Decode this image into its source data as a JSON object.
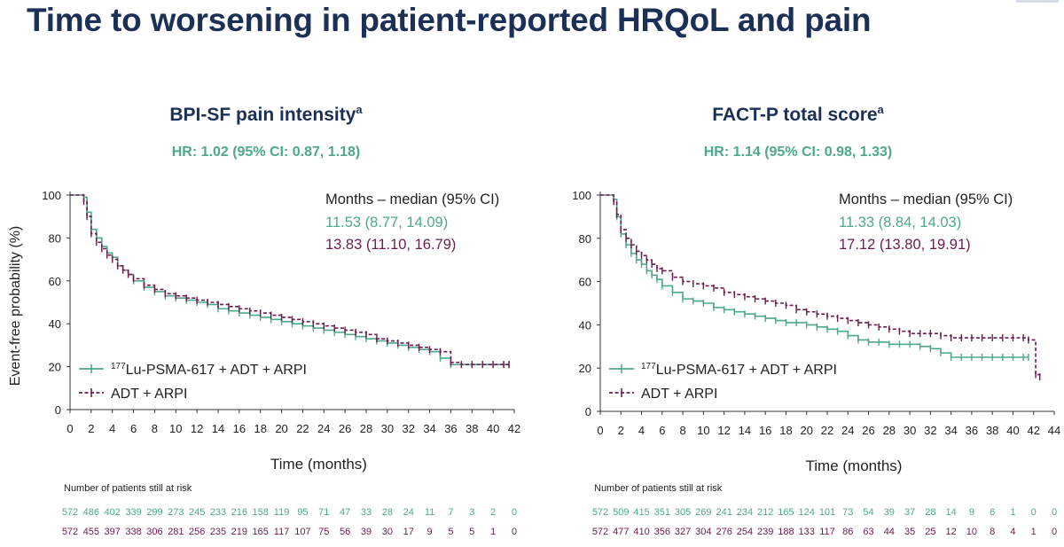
{
  "page": {
    "title": "Time to worsening in patient-reported HRQoL and pain"
  },
  "colors": {
    "title": "#1b2f57",
    "treatment": "#4ea88c",
    "control": "#6b1e4e",
    "axis": "#333333"
  },
  "chart_data": [
    {
      "type": "line",
      "subtype": "kaplan-meier",
      "title": "BPI-SF pain intensity",
      "title_superscript": "a",
      "subtitle": "HR: 1.02 (95% CI: 0.87, 1.18)",
      "xlabel": "Time (months)",
      "ylabel": "Event-free probability (%)",
      "xlim": [
        0,
        42
      ],
      "ylim": [
        0,
        100
      ],
      "x_ticks": [
        0,
        2,
        4,
        6,
        8,
        10,
        12,
        14,
        16,
        18,
        20,
        22,
        24,
        26,
        28,
        30,
        32,
        34,
        36,
        38,
        40,
        42
      ],
      "y_ticks": [
        0,
        20,
        40,
        60,
        80,
        100
      ],
      "legend_position": "bottom-left",
      "median_header": "Months – median (95% CI)",
      "series": [
        {
          "name": "177Lu-PSMA-617 + ADT + ARPI",
          "name_sup": "177",
          "name_rest": "Lu-PSMA-617 + ADT + ARPI",
          "median_text": "11.53 (8.77, 14.09)",
          "x": [
            0,
            1,
            1.3,
            1.6,
            2,
            2.5,
            3,
            3.5,
            4,
            4.5,
            5,
            5.5,
            6,
            7,
            8,
            9,
            10,
            11,
            12,
            13,
            14,
            15,
            16,
            17,
            18,
            19,
            20,
            21,
            22,
            23,
            24,
            25,
            26,
            27,
            28,
            29,
            30,
            31,
            32,
            33,
            34,
            35,
            36,
            37,
            38,
            39,
            40,
            41,
            41.5
          ],
          "y": [
            100,
            100,
            99,
            92,
            84,
            80,
            76,
            73,
            71,
            67,
            65,
            63,
            60,
            57,
            55,
            53,
            52,
            51,
            50,
            49,
            47,
            46,
            45,
            44,
            43,
            42,
            41,
            40,
            39,
            38,
            37,
            36,
            35,
            34,
            33,
            32,
            31,
            30,
            29,
            28,
            27,
            24,
            21,
            21,
            21,
            21,
            21,
            21,
            21
          ],
          "at_risk": [
            572,
            486,
            402,
            339,
            299,
            273,
            245,
            233,
            216,
            158,
            119,
            95,
            71,
            47,
            33,
            28,
            24,
            11,
            7,
            3,
            2,
            0
          ]
        },
        {
          "name": "ADT + ARPI",
          "median_text": "13.83 (11.10, 16.79)",
          "x": [
            0,
            1,
            1.3,
            1.6,
            2,
            2.5,
            3,
            3.5,
            4,
            4.5,
            5,
            5.5,
            6,
            7,
            8,
            9,
            10,
            11,
            12,
            13,
            14,
            15,
            16,
            17,
            18,
            19,
            20,
            21,
            22,
            23,
            24,
            25,
            26,
            27,
            28,
            29,
            30,
            31,
            32,
            33,
            34,
            35,
            36,
            37,
            38,
            39,
            40,
            41,
            41.5
          ],
          "y": [
            100,
            100,
            97,
            90,
            82,
            78,
            75,
            72,
            70,
            67,
            65,
            63,
            61,
            58,
            56,
            54,
            53,
            52,
            51,
            50,
            49,
            48,
            47,
            46,
            45,
            44,
            43,
            42,
            41,
            40,
            39,
            38,
            37,
            36,
            35,
            33,
            32,
            31,
            30,
            29,
            28,
            27,
            22,
            21,
            21,
            21,
            21,
            21,
            21
          ],
          "at_risk": [
            572,
            455,
            397,
            338,
            306,
            281,
            256,
            235,
            219,
            165,
            117,
            107,
            75,
            56,
            39,
            30,
            17,
            9,
            5,
            5,
            1,
            0
          ]
        }
      ],
      "at_risk_title": "Number of patients still at risk"
    },
    {
      "type": "line",
      "subtype": "kaplan-meier",
      "title": "FACT-P total score",
      "title_superscript": "a",
      "subtitle": "HR: 1.14 (95% CI: 0.98, 1.33)",
      "xlabel": "Time (months)",
      "ylabel": "",
      "xlim": [
        0,
        44
      ],
      "ylim": [
        0,
        100
      ],
      "x_ticks": [
        0,
        2,
        4,
        6,
        8,
        10,
        12,
        14,
        16,
        18,
        20,
        22,
        24,
        26,
        28,
        30,
        32,
        34,
        36,
        38,
        40,
        42,
        44
      ],
      "y_ticks": [
        0,
        20,
        40,
        60,
        80,
        100
      ],
      "legend_position": "bottom-left",
      "median_header": "Months – median (95% CI)",
      "series": [
        {
          "name": "177Lu-PSMA-617 + ADT + ARPI",
          "name_sup": "177",
          "name_rest": "Lu-PSMA-617 + ADT + ARPI",
          "median_text": "11.33 (8.84, 14.03)",
          "x": [
            0,
            1,
            1.3,
            1.6,
            2,
            2.5,
            3,
            3.5,
            4,
            4.5,
            5,
            5.5,
            6,
            7,
            8,
            9,
            10,
            11,
            12,
            13,
            14,
            15,
            16,
            17,
            18,
            19,
            20,
            21,
            22,
            23,
            24,
            25,
            26,
            27,
            28,
            29,
            30,
            31,
            32,
            33,
            34,
            35,
            36,
            37,
            38,
            39,
            40,
            41,
            41.5
          ],
          "y": [
            100,
            100,
            98,
            90,
            82,
            77,
            73,
            70,
            68,
            65,
            63,
            61,
            58,
            55,
            52,
            51,
            50,
            48,
            47,
            46,
            45,
            44,
            43,
            42,
            41,
            41,
            40,
            39,
            38,
            37,
            35,
            33,
            32,
            32,
            31,
            31,
            31,
            30,
            29,
            27,
            25,
            25,
            25,
            25,
            25,
            25,
            25,
            25,
            25
          ],
          "at_risk": [
            572,
            509,
            415,
            351,
            305,
            269,
            241,
            234,
            212,
            165,
            124,
            101,
            73,
            54,
            39,
            37,
            28,
            14,
            9,
            6,
            1,
            0,
            0
          ]
        },
        {
          "name": "ADT + ARPI",
          "median_text": "17.12 (13.80, 19.91)",
          "x": [
            0,
            1,
            1.3,
            1.6,
            2,
            2.5,
            3,
            3.5,
            4,
            4.5,
            5,
            5.5,
            6,
            7,
            8,
            9,
            10,
            11,
            12,
            13,
            14,
            15,
            16,
            17,
            18,
            19,
            20,
            21,
            22,
            23,
            24,
            25,
            26,
            27,
            28,
            29,
            30,
            31,
            32,
            33,
            34,
            35,
            36,
            37,
            38,
            39,
            40,
            41,
            41.5,
            42.2,
            42.6
          ],
          "y": [
            100,
            100,
            97,
            91,
            84,
            80,
            77,
            74,
            72,
            70,
            68,
            66,
            65,
            62,
            60,
            59,
            58,
            57,
            55,
            54,
            53,
            52,
            51,
            50,
            49,
            47,
            46,
            45,
            44,
            43,
            42,
            41,
            40,
            39,
            38,
            37,
            36,
            36,
            36,
            35,
            34,
            34,
            34,
            34,
            34,
            34,
            34,
            34,
            33,
            17,
            16
          ],
          "at_risk": [
            572,
            477,
            410,
            356,
            327,
            304,
            276,
            254,
            239,
            188,
            133,
            117,
            86,
            63,
            44,
            35,
            25,
            12,
            10,
            8,
            4,
            1,
            0
          ]
        }
      ],
      "at_risk_title": "Number of patients still at risk"
    }
  ]
}
